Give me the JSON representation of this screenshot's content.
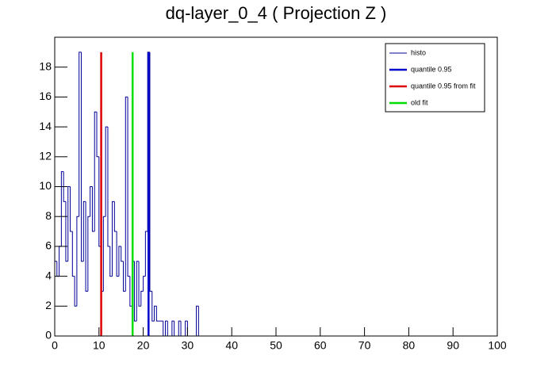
{
  "chart_data": {
    "type": "histogram",
    "title": "dq-layer_0_4 ( Projection Z )",
    "name": "histo",
    "color": "#000099",
    "bins": [
      0,
      0.5,
      1,
      1.5,
      2,
      2.5,
      3,
      3.5,
      4,
      4.5,
      5,
      5.5,
      6,
      6.5,
      7,
      7.5,
      8,
      8.5,
      9,
      9.5,
      10,
      10.5,
      11,
      11.5,
      12,
      12.5,
      13,
      13.5,
      14,
      14.5,
      15,
      15.5,
      16,
      16.5,
      17,
      17.5,
      18,
      18.5,
      19,
      19.5,
      20,
      20.5,
      21,
      21.5,
      22,
      22.5,
      23,
      23.5,
      24,
      24.5,
      25,
      25.5,
      26,
      26.5,
      27,
      27.5,
      28,
      28.5,
      29,
      29.5,
      30,
      30.5,
      31,
      31.5,
      32,
      32.5,
      33
    ],
    "counts": [
      5,
      4,
      6,
      11,
      9,
      5,
      10,
      7,
      4,
      2,
      8,
      19,
      5,
      9,
      3,
      8,
      10,
      7,
      15,
      12,
      6,
      3,
      8,
      14,
      6,
      4,
      9,
      7,
      4,
      6,
      5,
      3,
      16,
      4,
      2,
      5,
      1,
      5,
      2,
      3,
      4,
      7,
      19,
      3,
      1,
      2,
      1,
      1,
      1,
      0,
      1,
      0,
      0,
      1,
      0,
      0,
      1,
      0,
      0,
      1,
      0,
      0,
      0,
      0,
      2,
      0
    ],
    "markers": [
      {
        "name": "quantile 0.95",
        "color": "#0000cc",
        "x": 21.2,
        "height": 19
      },
      {
        "name": "quantile 0.95 from fit",
        "color": "#dd0000",
        "x": 10.5,
        "height": 19
      },
      {
        "name": "old fit",
        "color": "#00dd00",
        "x": 17.6,
        "height": 19
      }
    ],
    "xlim": [
      0,
      100
    ],
    "ylim": [
      0,
      20
    ],
    "xticks": [
      0,
      10,
      20,
      30,
      40,
      50,
      60,
      70,
      80,
      90,
      100
    ],
    "yticks": [
      0,
      2,
      4,
      6,
      8,
      10,
      12,
      14,
      16,
      18
    ],
    "legend": "top-right"
  }
}
